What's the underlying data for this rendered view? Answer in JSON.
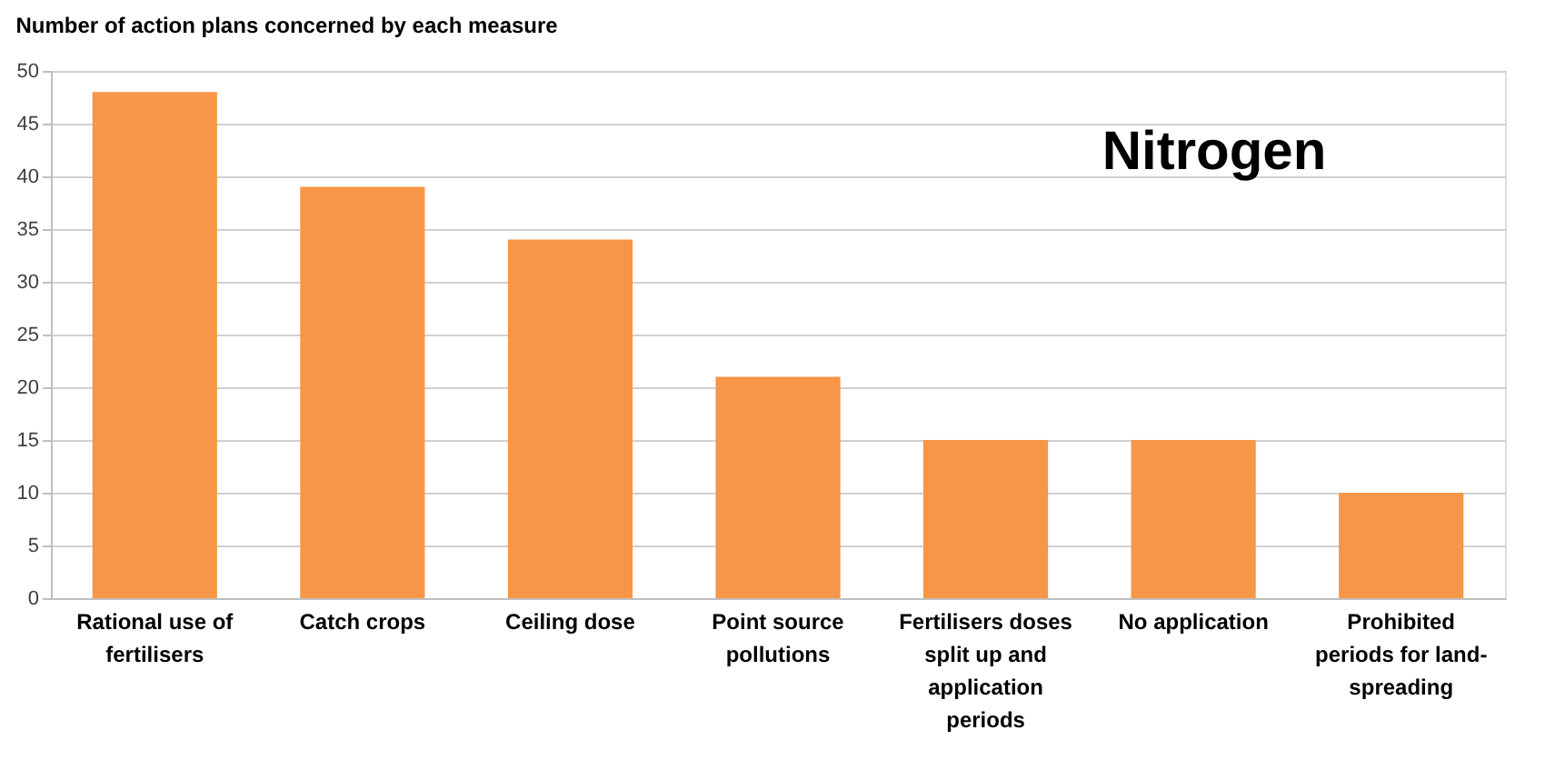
{
  "chart_data": {
    "type": "bar",
    "title": "Number of action plans concerned by each measure",
    "categories": [
      "Rational use of fertilisers",
      "Catch crops",
      "Ceiling dose",
      "Point source pollutions",
      "Fertilisers doses split up and application periods",
      "No application",
      "Prohibited periods for land-spreading"
    ],
    "values": [
      48,
      39,
      34,
      21,
      15,
      15,
      10
    ],
    "color": "#f79646",
    "ylim": [
      0,
      50
    ],
    "yticks": [
      0,
      5,
      10,
      15,
      20,
      25,
      30,
      35,
      40,
      45,
      50
    ],
    "grid": "y",
    "annotations": [
      "Nitrogen"
    ]
  }
}
